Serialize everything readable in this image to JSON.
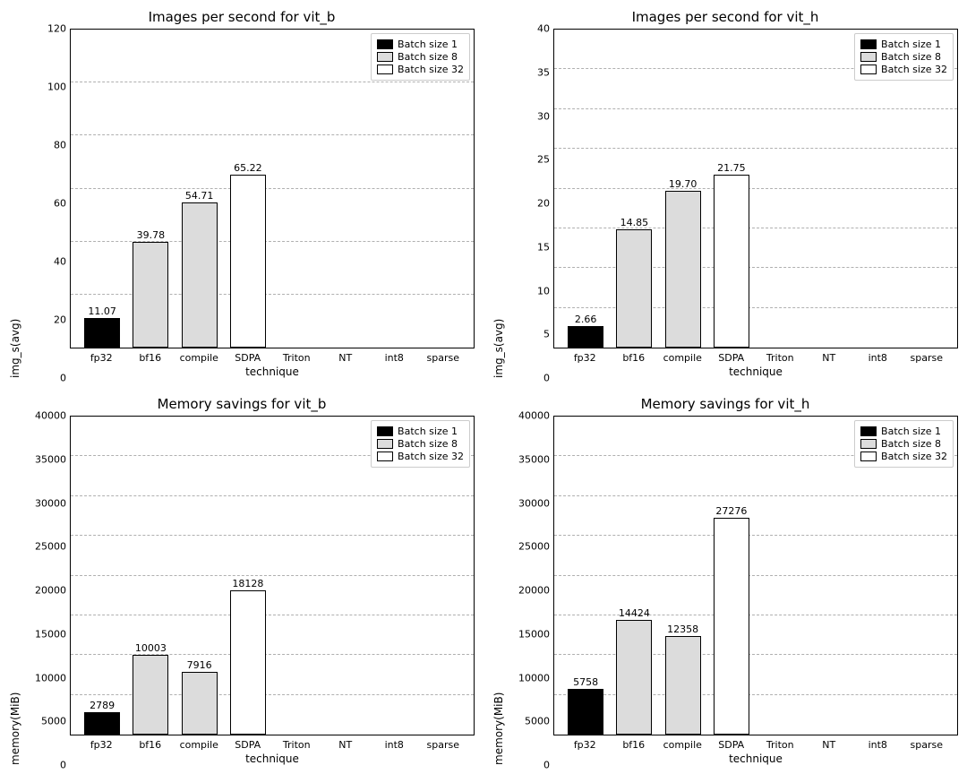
{
  "grid": {
    "rows": 2,
    "cols": 2
  },
  "colors": {
    "batch1": "#000000",
    "batch8": "#dcdcdc",
    "batch32": "#ffffff",
    "grid": "#b0b0b0",
    "border": "#000000",
    "background": "#ffffff"
  },
  "legend": {
    "items": [
      {
        "label": "Batch size 1",
        "color_key": "batch1"
      },
      {
        "label": "Batch size 8",
        "color_key": "batch8"
      },
      {
        "label": "Batch size 32",
        "color_key": "batch32"
      }
    ]
  },
  "shared": {
    "categories": [
      "fp32",
      "bf16",
      "compile",
      "SDPA",
      "Triton",
      "NT",
      "int8",
      "sparse"
    ],
    "xlabel": "technique",
    "bar_width": 0.74,
    "title_fontsize": 15,
    "label_fontsize": 12,
    "tick_fontsize": 11
  },
  "charts": [
    {
      "id": "vitb-imgs",
      "type": "bar",
      "title": "Images per second for vit_b",
      "ylabel": "img_s(avg)",
      "ylim": [
        0,
        120
      ],
      "ytick_step": 20,
      "value_decimals": 2,
      "bars": [
        {
          "category": "fp32",
          "value": 11.07,
          "color_key": "batch1"
        },
        {
          "category": "bf16",
          "value": 39.78,
          "color_key": "batch8"
        },
        {
          "category": "compile",
          "value": 54.71,
          "color_key": "batch8"
        },
        {
          "category": "SDPA",
          "value": 65.22,
          "color_key": "batch32"
        }
      ]
    },
    {
      "id": "vith-imgs",
      "type": "bar",
      "title": "Images per second for vit_h",
      "ylabel": "img_s(avg)",
      "ylim": [
        0,
        40
      ],
      "ytick_step": 5,
      "value_decimals": 2,
      "bars": [
        {
          "category": "fp32",
          "value": 2.66,
          "color_key": "batch1"
        },
        {
          "category": "bf16",
          "value": 14.85,
          "color_key": "batch8"
        },
        {
          "category": "compile",
          "value": 19.7,
          "color_key": "batch8"
        },
        {
          "category": "SDPA",
          "value": 21.75,
          "color_key": "batch32"
        }
      ]
    },
    {
      "id": "vitb-mem",
      "type": "bar",
      "title": "Memory savings for vit_b",
      "ylabel": "memory(MiB)",
      "ylim": [
        0,
        40000
      ],
      "ytick_step": 5000,
      "value_decimals": 0,
      "bars": [
        {
          "category": "fp32",
          "value": 2789,
          "color_key": "batch1"
        },
        {
          "category": "bf16",
          "value": 10003,
          "color_key": "batch8"
        },
        {
          "category": "compile",
          "value": 7916,
          "color_key": "batch8"
        },
        {
          "category": "SDPA",
          "value": 18128,
          "color_key": "batch32"
        }
      ]
    },
    {
      "id": "vith-mem",
      "type": "bar",
      "title": "Memory savings for vit_h",
      "ylabel": "memory(MiB)",
      "ylim": [
        0,
        40000
      ],
      "ytick_step": 5000,
      "value_decimals": 0,
      "bars": [
        {
          "category": "fp32",
          "value": 5758,
          "color_key": "batch1"
        },
        {
          "category": "bf16",
          "value": 14424,
          "color_key": "batch8"
        },
        {
          "category": "compile",
          "value": 12358,
          "color_key": "batch8"
        },
        {
          "category": "SDPA",
          "value": 27276,
          "color_key": "batch32"
        }
      ]
    }
  ]
}
